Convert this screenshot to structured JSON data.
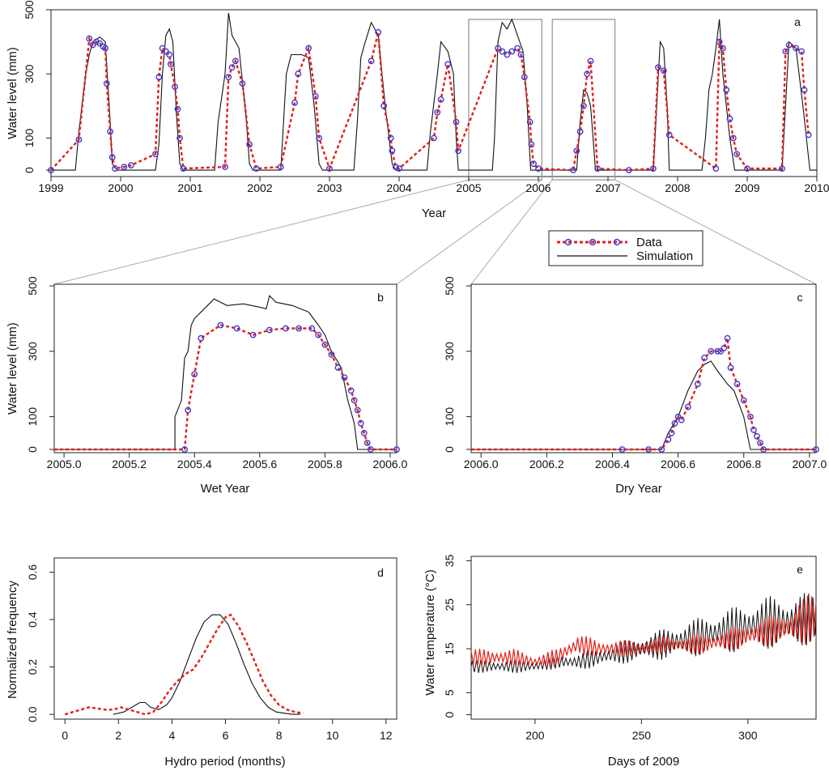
{
  "figure": {
    "legend": {
      "data_label": "Data",
      "sim_label": "Simulation"
    },
    "colors": {
      "data_line": "#e3201b",
      "data_marker": "#3b3bd6",
      "sim": "#111111",
      "box": "#999999",
      "zoom": "#aaaaaa"
    }
  },
  "chart_data": [
    {
      "id": "a",
      "type": "line",
      "panel_label": "a",
      "xlabel": "Year",
      "ylabel": "Water level (mm)",
      "xlim": [
        1999,
        2010
      ],
      "ylim": [
        -20,
        500
      ],
      "xticks": [
        1999,
        2000,
        2001,
        2002,
        2003,
        2004,
        2005,
        2006,
        2007,
        2008,
        2009,
        2010
      ],
      "xtick_labels": [
        "1999",
        "2000",
        "2001",
        "2002",
        "2003",
        "2004",
        "2005",
        "2006",
        "2007",
        "2008",
        "2009",
        "2010"
      ],
      "yticks": [
        0,
        100,
        300,
        500
      ],
      "ytick_labels": [
        "0",
        "100",
        "300",
        "500"
      ],
      "zoom_boxes": [
        [
          2005.0,
          2006.05
        ],
        [
          2006.2,
          2007.1
        ]
      ],
      "series": [
        {
          "name": "Simulation",
          "x": [
            1999.0,
            1999.35,
            1999.4,
            1999.5,
            1999.55,
            1999.6,
            1999.7,
            1999.78,
            1999.85,
            1999.88,
            1999.95,
            2000.0,
            2000.5,
            2000.55,
            2000.6,
            2000.65,
            2000.7,
            2000.75,
            2000.8,
            2000.85,
            2000.9,
            2001.0,
            2001.35,
            2001.4,
            2001.5,
            2001.55,
            2001.6,
            2001.7,
            2001.8,
            2001.85,
            2001.9,
            2002.0,
            2002.3,
            2002.38,
            2002.45,
            2002.6,
            2002.7,
            2002.78,
            2002.85,
            2002.9,
            2003.0,
            2003.35,
            2003.4,
            2003.45,
            2003.5,
            2003.6,
            2003.7,
            2003.8,
            2003.9,
            2003.95,
            2004.0,
            2004.4,
            2004.45,
            2004.55,
            2004.6,
            2004.7,
            2004.78,
            2004.82,
            2004.85,
            2005.0,
            2005.34,
            2005.37,
            2005.42,
            2005.48,
            2005.55,
            2005.62,
            2005.7,
            2005.78,
            2005.84,
            2005.89,
            2006.0,
            2006.55,
            2006.6,
            2006.65,
            2006.7,
            2006.75,
            2006.8,
            2006.82,
            2007.0,
            2007.65,
            2007.7,
            2007.75,
            2007.8,
            2007.85,
            2007.88,
            2008.0,
            2008.35,
            2008.4,
            2008.45,
            2008.5,
            2008.55,
            2008.6,
            2008.65,
            2008.7,
            2008.75,
            2008.82,
            2009.0,
            2009.5,
            2009.55,
            2009.6,
            2009.7,
            2009.8,
            2009.85,
            2009.9,
            2010.0
          ],
          "y": [
            0,
            0,
            120,
            300,
            360,
            400,
            415,
            400,
            150,
            20,
            0,
            0,
            0,
            80,
            300,
            420,
            440,
            400,
            180,
            20,
            0,
            0,
            0,
            150,
            300,
            490,
            420,
            380,
            170,
            20,
            0,
            0,
            0,
            300,
            360,
            360,
            350,
            200,
            20,
            0,
            0,
            0,
            150,
            350,
            390,
            460,
            420,
            200,
            20,
            0,
            0,
            0,
            120,
            300,
            400,
            370,
            300,
            100,
            0,
            0,
            0,
            100,
            400,
            460,
            440,
            470,
            420,
            370,
            200,
            0,
            0,
            0,
            150,
            250,
            240,
            200,
            60,
            0,
            0,
            0,
            200,
            400,
            380,
            200,
            0,
            0,
            0,
            100,
            250,
            300,
            380,
            470,
            300,
            200,
            100,
            0,
            0,
            0,
            200,
            400,
            380,
            200,
            100,
            0,
            0
          ]
        },
        {
          "name": "Data",
          "x": [
            1999.0,
            1999.4,
            1999.55,
            1999.6,
            1999.65,
            1999.7,
            1999.75,
            1999.78,
            1999.8,
            1999.85,
            1999.88,
            1999.92,
            2000.05,
            2000.15,
            2000.5,
            2000.55,
            2000.6,
            2000.65,
            2000.7,
            2000.72,
            2000.78,
            2000.82,
            2000.85,
            2000.9,
            2001.5,
            2001.55,
            2001.6,
            2001.65,
            2001.75,
            2001.85,
            2001.95,
            2002.3,
            2002.5,
            2002.55,
            2002.7,
            2002.8,
            2002.85,
            2003.0,
            2003.6,
            2003.7,
            2003.78,
            2003.88,
            2003.9,
            2003.95,
            2004.0,
            2004.5,
            2004.55,
            2004.6,
            2004.7,
            2004.82,
            2004.85,
            2005.42,
            2005.48,
            2005.55,
            2005.62,
            2005.7,
            2005.75,
            2005.8,
            2005.88,
            2005.9,
            2005.93,
            2006.0,
            2006.5,
            2006.55,
            2006.6,
            2006.65,
            2006.7,
            2006.75,
            2006.85,
            2007.3,
            2007.65,
            2007.72,
            2007.8,
            2007.88,
            2008.55,
            2008.6,
            2008.65,
            2008.7,
            2008.75,
            2008.8,
            2008.85,
            2009.0,
            2009.5,
            2009.55,
            2009.6,
            2009.7,
            2009.78,
            2009.82,
            2009.88
          ],
          "y": [
            0,
            95,
            410,
            390,
            400,
            395,
            385,
            380,
            270,
            120,
            40,
            5,
            10,
            15,
            50,
            290,
            380,
            370,
            360,
            330,
            260,
            190,
            100,
            5,
            10,
            290,
            320,
            340,
            270,
            80,
            5,
            10,
            210,
            300,
            380,
            230,
            100,
            5,
            340,
            430,
            200,
            100,
            60,
            10,
            5,
            100,
            180,
            220,
            330,
            150,
            60,
            380,
            370,
            360,
            370,
            380,
            360,
            290,
            150,
            80,
            20,
            5,
            0,
            60,
            120,
            200,
            300,
            340,
            5,
            0,
            5,
            320,
            310,
            110,
            5,
            400,
            380,
            250,
            160,
            100,
            50,
            5,
            5,
            370,
            390,
            380,
            370,
            250,
            110
          ]
        }
      ]
    },
    {
      "id": "b",
      "type": "line",
      "panel_label": "b",
      "xlabel": "Wet Year",
      "ylabel": "Water level (mm)",
      "xlim": [
        2004.97,
        2006.02
      ],
      "ylim": [
        -10,
        505
      ],
      "xticks": [
        2005.0,
        2005.2,
        2005.4,
        2005.6,
        2005.8,
        2006.0
      ],
      "xtick_labels": [
        "2005.0",
        "2005.2",
        "2005.4",
        "2005.6",
        "2005.8",
        "2006.0"
      ],
      "yticks": [
        0,
        100,
        300,
        500
      ],
      "ytick_labels": [
        "0",
        "100",
        "300",
        "500"
      ],
      "series": [
        {
          "name": "Simulation",
          "x": [
            2004.97,
            2005.34,
            2005.34,
            2005.36,
            2005.37,
            2005.38,
            2005.39,
            2005.4,
            2005.42,
            2005.44,
            2005.46,
            2005.48,
            2005.5,
            2005.55,
            2005.6,
            2005.62,
            2005.63,
            2005.65,
            2005.7,
            2005.75,
            2005.78,
            2005.8,
            2005.82,
            2005.85,
            2005.87,
            2005.89,
            2005.9,
            2006.02
          ],
          "y": [
            0,
            0,
            100,
            150,
            280,
            300,
            380,
            400,
            420,
            440,
            460,
            450,
            440,
            445,
            435,
            430,
            470,
            450,
            440,
            420,
            380,
            350,
            300,
            250,
            150,
            80,
            0,
            0
          ]
        },
        {
          "name": "Data",
          "x": [
            2004.97,
            2005.37,
            2005.38,
            2005.4,
            2005.42,
            2005.48,
            2005.53,
            2005.58,
            2005.63,
            2005.68,
            2005.72,
            2005.76,
            2005.78,
            2005.8,
            2005.82,
            2005.84,
            2005.86,
            2005.88,
            2005.89,
            2005.9,
            2005.91,
            2005.92,
            2005.93,
            2005.94,
            2006.02
          ],
          "y": [
            0,
            0,
            120,
            230,
            340,
            380,
            370,
            350,
            365,
            370,
            370,
            370,
            350,
            320,
            290,
            250,
            220,
            180,
            150,
            120,
            80,
            50,
            20,
            0,
            0
          ]
        }
      ]
    },
    {
      "id": "c",
      "type": "line",
      "panel_label": "c",
      "xlabel": "Dry Year",
      "ylabel": "Water level (mm)",
      "xlim": [
        2005.97,
        2007.02
      ],
      "ylim": [
        -10,
        505
      ],
      "xticks": [
        2006.0,
        2006.2,
        2006.4,
        2006.6,
        2006.8,
        2007.0
      ],
      "xtick_labels": [
        "2006.0",
        "2006.2",
        "2006.4",
        "2006.6",
        "2006.8",
        "2007.0"
      ],
      "yticks": [
        0,
        100,
        300,
        500
      ],
      "ytick_labels": [
        "0",
        "100",
        "300",
        "500"
      ],
      "series": [
        {
          "name": "Simulation",
          "x": [
            2005.97,
            2006.55,
            2006.57,
            2006.6,
            2006.63,
            2006.66,
            2006.68,
            2006.7,
            2006.72,
            2006.75,
            2006.77,
            2006.8,
            2006.82,
            2007.02
          ],
          "y": [
            0,
            0,
            50,
            100,
            180,
            240,
            260,
            270,
            240,
            200,
            180,
            100,
            0,
            0
          ]
        },
        {
          "name": "Data",
          "x": [
            2005.97,
            2006.43,
            2006.51,
            2006.55,
            2006.57,
            2006.58,
            2006.59,
            2006.6,
            2006.61,
            2006.63,
            2006.66,
            2006.68,
            2006.7,
            2006.72,
            2006.73,
            2006.74,
            2006.75,
            2006.76,
            2006.78,
            2006.8,
            2006.82,
            2006.83,
            2006.84,
            2006.85,
            2006.86,
            2007.02
          ],
          "y": [
            0,
            0,
            0,
            0,
            30,
            50,
            80,
            100,
            90,
            130,
            200,
            280,
            300,
            300,
            300,
            310,
            340,
            250,
            200,
            150,
            100,
            60,
            40,
            20,
            0,
            0
          ]
        }
      ]
    },
    {
      "id": "d",
      "type": "line",
      "panel_label": "d",
      "xlabel": "Hydro  period (months)",
      "ylabel": "Normalized frequency",
      "xlim": [
        -0.4,
        12.4
      ],
      "ylim": [
        -0.02,
        0.66
      ],
      "xticks": [
        0,
        2,
        4,
        6,
        8,
        10,
        12
      ],
      "xtick_labels": [
        "0",
        "2",
        "4",
        "6",
        "8",
        "10",
        "12"
      ],
      "yticks": [
        0.0,
        0.2,
        0.4,
        0.6
      ],
      "ytick_labels": [
        "0.0",
        "0.2",
        "0.4",
        "0.6"
      ],
      "series": [
        {
          "name": "Simulation",
          "x": [
            1.8,
            2.2,
            2.5,
            2.8,
            3.0,
            3.2,
            3.5,
            3.8,
            4.0,
            4.3,
            4.6,
            4.9,
            5.2,
            5.5,
            5.8,
            6.1,
            6.4,
            6.7,
            7.0,
            7.3,
            7.6,
            7.9,
            8.2,
            8.5,
            8.8
          ],
          "y": [
            0.0,
            0.01,
            0.03,
            0.05,
            0.05,
            0.03,
            0.02,
            0.04,
            0.07,
            0.14,
            0.23,
            0.32,
            0.39,
            0.42,
            0.42,
            0.38,
            0.3,
            0.21,
            0.13,
            0.07,
            0.03,
            0.01,
            0.005,
            0.0,
            0.0
          ]
        },
        {
          "name": "Data",
          "x": [
            0.0,
            0.3,
            0.6,
            0.9,
            1.2,
            1.5,
            1.8,
            2.1,
            2.4,
            2.7,
            3.0,
            3.3,
            3.6,
            3.9,
            4.2,
            4.5,
            4.8,
            5.1,
            5.4,
            5.7,
            6.0,
            6.2,
            6.5,
            6.8,
            7.1,
            7.4,
            7.7,
            8.0,
            8.3,
            8.6,
            8.9
          ],
          "y": [
            0.0,
            0.01,
            0.02,
            0.03,
            0.025,
            0.02,
            0.02,
            0.03,
            0.02,
            0.01,
            0.0,
            0.01,
            0.05,
            0.1,
            0.14,
            0.17,
            0.19,
            0.24,
            0.3,
            0.36,
            0.41,
            0.42,
            0.37,
            0.3,
            0.22,
            0.14,
            0.08,
            0.04,
            0.02,
            0.01,
            0.005
          ]
        }
      ]
    },
    {
      "id": "e",
      "type": "line",
      "panel_label": "e",
      "xlabel": "Days of 2009",
      "ylabel": "Water temperature (°C)",
      "xlim": [
        170,
        332
      ],
      "ylim": [
        -1,
        36
      ],
      "xticks": [
        200,
        250,
        300
      ],
      "xtick_labels": [
        "200",
        "250",
        "300"
      ],
      "yticks": [
        0,
        5,
        15,
        25,
        35
      ],
      "ytick_labels": [
        "0",
        "5",
        "15",
        "25",
        "35"
      ],
      "series": [
        {
          "name": "Simulation",
          "x": [
            170,
            180,
            190,
            200,
            210,
            220,
            230,
            240,
            250,
            260,
            270,
            280,
            290,
            300,
            310,
            320,
            330,
            332
          ],
          "y": [
            11,
            11,
            11,
            11,
            12,
            12,
            13,
            14,
            15,
            16,
            17,
            18,
            19,
            20,
            21,
            21,
            22,
            22
          ],
          "amp": [
            1.5,
            1.5,
            1.5,
            1.5,
            1.5,
            2,
            2,
            2.5,
            3,
            3.5,
            4,
            4.5,
            5,
            5.5,
            6,
            6,
            6,
            6
          ]
        },
        {
          "name": "Data",
          "x": [
            170,
            180,
            190,
            200,
            210,
            220,
            230,
            240,
            250,
            260,
            270,
            280,
            290,
            300,
            310,
            320,
            330,
            332
          ],
          "y": [
            13,
            13,
            13,
            12,
            13,
            16,
            15,
            15,
            15,
            16,
            16,
            16,
            17,
            18,
            19,
            20,
            22,
            22
          ],
          "amp": [
            2,
            2,
            2,
            1.5,
            2,
            2.5,
            2,
            2,
            2,
            2,
            2,
            2.5,
            2.5,
            3,
            3.5,
            4,
            6,
            6
          ]
        }
      ]
    }
  ]
}
